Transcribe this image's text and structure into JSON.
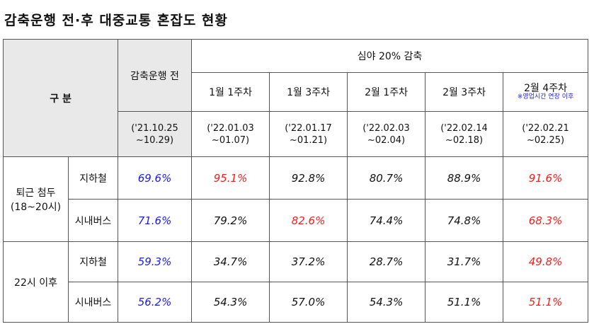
{
  "title": "감축운행 전·후 대중교통 혼잡도 현황",
  "table": {
    "group_header": "구 분",
    "pre_header": "감축운행 전",
    "cut_header": "심야 20% 감축",
    "weeks": [
      "1월 1주차",
      "1월 3주차",
      "2월 1주차",
      "2월 3주차",
      "2월 4주차"
    ],
    "week_note": "※영업시간 연장 이후",
    "periods": [
      [
        "('21.10.25",
        "~10.29)"
      ],
      [
        "('22.01.03",
        "~01.07)"
      ],
      [
        "('22.01.17",
        "~01.21)"
      ],
      [
        "('22.02.03",
        "~02.04)"
      ],
      [
        "('22.02.14",
        "~02.18)"
      ],
      [
        "('22.02.21",
        "~02.25)"
      ]
    ],
    "groups": [
      {
        "label": [
          "퇴근 첨두",
          "(18~20시)"
        ],
        "rows": [
          {
            "mode": "지하철",
            "values": [
              "69.6%",
              "95.1%",
              "92.8%",
              "80.7%",
              "88.9%",
              "91.6%"
            ],
            "colors": [
              "#1a1aff",
              "#ff1a1a",
              "#111111",
              "#111111",
              "#111111",
              "#ff1a1a"
            ]
          },
          {
            "mode": "시내버스",
            "values": [
              "71.6%",
              "79.2%",
              "82.6%",
              "74.4%",
              "74.8%",
              "68.3%"
            ],
            "colors": [
              "#1a1aff",
              "#111111",
              "#ff1a1a",
              "#111111",
              "#111111",
              "#ff1a1a"
            ]
          }
        ]
      },
      {
        "label": [
          "22시 이후"
        ],
        "rows": [
          {
            "mode": "지하철",
            "values": [
              "59.3%",
              "34.7%",
              "37.2%",
              "28.7%",
              "31.7%",
              "49.8%"
            ],
            "colors": [
              "#1a1aff",
              "#111111",
              "#111111",
              "#111111",
              "#111111",
              "#ff1a1a"
            ]
          },
          {
            "mode": "시내버스",
            "values": [
              "56.2%",
              "54.3%",
              "57.0%",
              "54.3%",
              "51.1%",
              "51.1%"
            ],
            "colors": [
              "#1a1aff",
              "#111111",
              "#111111",
              "#111111",
              "#111111",
              "#ff1a1a"
            ]
          }
        ]
      }
    ]
  }
}
